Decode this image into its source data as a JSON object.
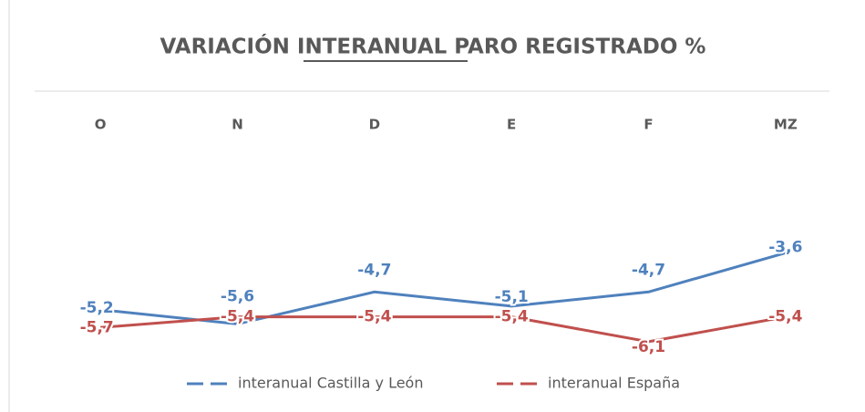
{
  "chart_data": {
    "type": "line",
    "title": "VARIACIÓN INTERANUAL PARO REGISTRADO %",
    "categories": [
      "O",
      "N",
      "D",
      "E",
      "F",
      "MZ"
    ],
    "ylim": [
      -7,
      0
    ],
    "series": [
      {
        "name": "interanual Castilla y León",
        "color": "#4f81bd",
        "values": [
          -5.2,
          -5.6,
          -4.7,
          -5.1,
          -4.7,
          -3.6
        ],
        "value_labels": [
          "-5,2",
          "-5,6",
          "-4,7",
          "-5,1",
          "-4,7",
          "-3,6"
        ]
      },
      {
        "name": "interanual España",
        "color": "#c0504d",
        "values": [
          -5.7,
          -5.4,
          -5.4,
          -5.4,
          -6.1,
          -5.4
        ],
        "value_labels": [
          "-5,7",
          "-5,4",
          "-5,4",
          "-5,4",
          "-6,1",
          "-5,4"
        ]
      }
    ]
  }
}
